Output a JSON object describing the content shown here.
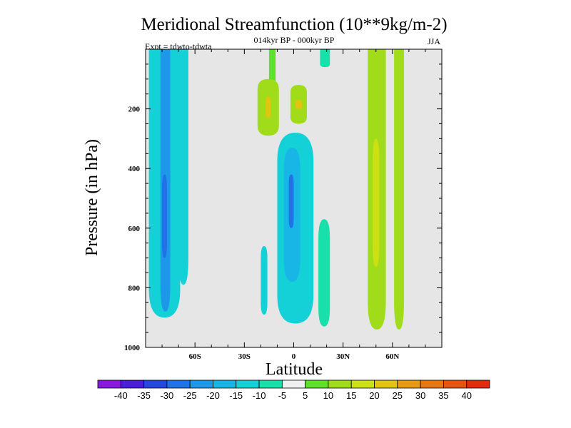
{
  "chart_data": {
    "type": "heatmap",
    "title": "Meridional Streamfunction (10**9kg/m-2)",
    "subtitle": "014kyr BP - 000kyr BP",
    "expt_label": "Expt = tdwto-tdwta",
    "season": "JJA",
    "xlabel": "Latitude",
    "ylabel": "Pressure (in hPa)",
    "xlim": [
      -90,
      90
    ],
    "ylim": [
      0,
      1000
    ],
    "x_ticks": [
      {
        "value": -60,
        "label": "60S"
      },
      {
        "value": -30,
        "label": "30S"
      },
      {
        "value": 0,
        "label": "0"
      },
      {
        "value": 30,
        "label": "30N"
      },
      {
        "value": 60,
        "label": "60N"
      }
    ],
    "y_ticks": [
      {
        "value": 200,
        "label": "200"
      },
      {
        "value": 400,
        "label": "400"
      },
      {
        "value": 600,
        "label": "600"
      },
      {
        "value": 800,
        "label": "800"
      },
      {
        "value": 1000,
        "label": "1000"
      }
    ],
    "colorbar": {
      "levels": [
        -40,
        -35,
        -30,
        -25,
        -20,
        -15,
        -10,
        -5,
        5,
        10,
        15,
        20,
        25,
        30,
        35,
        40
      ],
      "level_labels": [
        "-40",
        "-35",
        "-30",
        "-25",
        "-20",
        "-15",
        "-10",
        "-5",
        "5",
        "10",
        "15",
        "20",
        "25",
        "30",
        "35",
        "40"
      ],
      "colors": [
        "#8a19e0",
        "#4b1fd9",
        "#2448de",
        "#1f73e6",
        "#1d98e8",
        "#17b6e6",
        "#13d1d6",
        "#17e0ab",
        "#f0f0f0",
        "#5fe02a",
        "#a0dc1a",
        "#cce014",
        "#e3c410",
        "#e89a12",
        "#e67712",
        "#e5550f",
        "#e22d0c"
      ]
    },
    "background_color": "#e6e6e6",
    "regions": [
      {
        "value": -12,
        "lat": [
          -88,
          -69
        ],
        "p": [
          0,
          900
        ]
      },
      {
        "value": -22,
        "lat": [
          -81,
          -75
        ],
        "p": [
          0,
          880
        ]
      },
      {
        "value": -28,
        "lat": [
          -80,
          -77
        ],
        "p": [
          420,
          700
        ]
      },
      {
        "value": -12,
        "lat": [
          -70,
          -64
        ],
        "p": [
          0,
          790
        ]
      },
      {
        "value": 8,
        "lat": [
          -15,
          -11
        ],
        "p": [
          0,
          140
        ]
      },
      {
        "value": 14,
        "lat": [
          -22,
          -9
        ],
        "p": [
          100,
          290
        ]
      },
      {
        "value": 22,
        "lat": [
          -17,
          -14
        ],
        "p": [
          160,
          230
        ]
      },
      {
        "value": 12,
        "lat": [
          -2,
          8
        ],
        "p": [
          120,
          250
        ]
      },
      {
        "value": 20,
        "lat": [
          1,
          5
        ],
        "p": [
          170,
          200
        ]
      },
      {
        "value": -12,
        "lat": [
          -10,
          12
        ],
        "p": [
          280,
          920
        ]
      },
      {
        "value": -20,
        "lat": [
          -6,
          4
        ],
        "p": [
          330,
          780
        ]
      },
      {
        "value": -26,
        "lat": [
          -3,
          0
        ],
        "p": [
          420,
          600
        ]
      },
      {
        "value": -12,
        "lat": [
          -20,
          -16
        ],
        "p": [
          660,
          890
        ]
      },
      {
        "value": -8,
        "lat": [
          16,
          22
        ],
        "p": [
          0,
          60
        ]
      },
      {
        "value": -10,
        "lat": [
          15,
          22
        ],
        "p": [
          570,
          930
        ]
      },
      {
        "value": 12,
        "lat": [
          45,
          56
        ],
        "p": [
          0,
          940
        ]
      },
      {
        "value": 18,
        "lat": [
          48,
          52
        ],
        "p": [
          300,
          730
        ]
      },
      {
        "value": 10,
        "lat": [
          61,
          67
        ],
        "p": [
          0,
          940
        ]
      }
    ]
  }
}
